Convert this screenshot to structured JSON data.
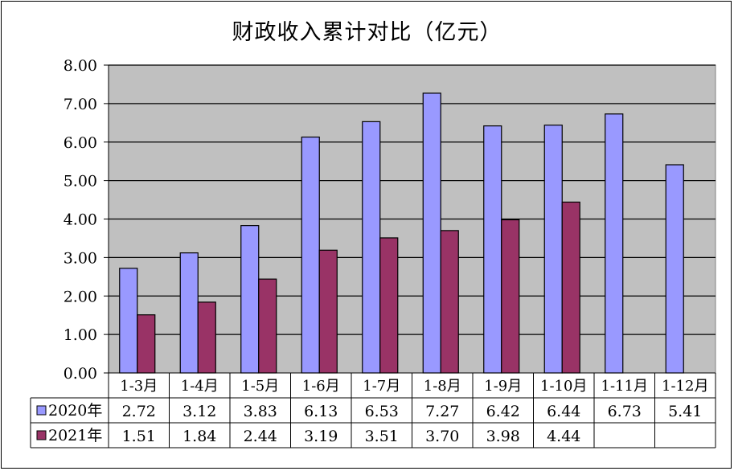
{
  "chart_data": {
    "type": "bar",
    "title": "财政收入累计对比（亿元）",
    "categories": [
      "1-3月",
      "1-4月",
      "1-5月",
      "1-6月",
      "1-7月",
      "1-8月",
      "1-9月",
      "1-10月",
      "1-11月",
      "1-12月"
    ],
    "series": [
      {
        "name": "2020年",
        "color": "#9999FF",
        "values": [
          2.72,
          3.12,
          3.83,
          6.13,
          6.53,
          7.27,
          6.42,
          6.44,
          6.73,
          5.41
        ],
        "labels": [
          "2.72",
          "3.12",
          "3.83",
          "6.13",
          "6.53",
          "7.27",
          "6.42",
          "6.44",
          "6.73",
          "5.41"
        ]
      },
      {
        "name": "2021年",
        "color": "#993366",
        "values": [
          1.51,
          1.84,
          2.44,
          3.19,
          3.51,
          3.7,
          3.98,
          4.44,
          null,
          null
        ],
        "labels": [
          "1.51",
          "1.84",
          "2.44",
          "3.19",
          "3.51",
          "3.70",
          "3.98",
          "4.44",
          "",
          ""
        ]
      }
    ],
    "ylim": [
      0,
      8
    ],
    "yticks": [
      "0.00",
      "1.00",
      "2.00",
      "3.00",
      "4.00",
      "5.00",
      "6.00",
      "7.00",
      "8.00"
    ],
    "plot_background": "#C0C0C0",
    "grid": true,
    "data_table": true,
    "legend": "data-table"
  }
}
